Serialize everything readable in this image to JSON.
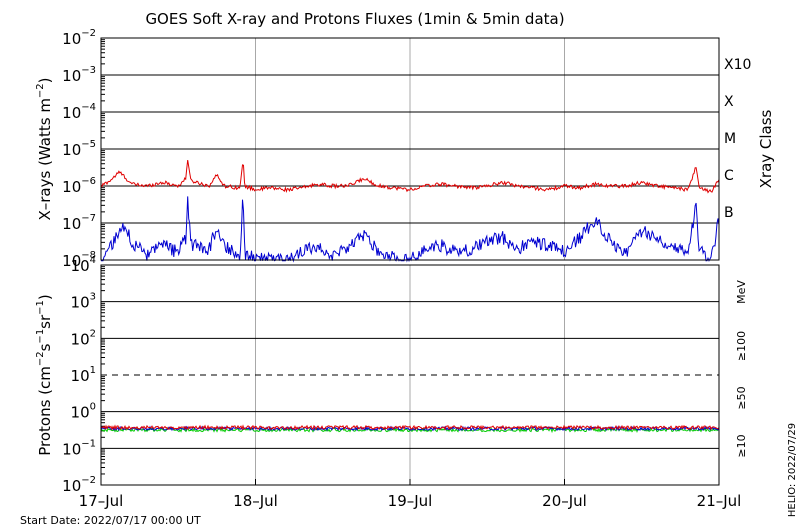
{
  "chart_data": {
    "type": "line",
    "title": "GOES Soft X-ray and Protons Fluxes   (1min & 5min data)",
    "x_axis": {
      "range": [
        "2022-07-17 00:00",
        "2022-07-21 00:00"
      ],
      "ticks": [
        {
          "label": "17–Jul",
          "day": 0
        },
        {
          "label": "18–Jul",
          "day": 1
        },
        {
          "label": "19–Jul",
          "day": 2
        },
        {
          "label": "20–Jul",
          "day": 3
        },
        {
          "label": "21–Jul",
          "day": 4
        }
      ]
    },
    "panels": [
      {
        "id": "xray",
        "ylabel": {
          "pre": "X–rays (Watts m",
          "sup": "−2",
          "post": ")"
        },
        "scale": "log",
        "ylim_exp": [
          -8,
          -2
        ],
        "ytick_labels": [
          {
            "base": "10",
            "exp": "−8",
            "e": -8
          },
          {
            "base": "10",
            "exp": "−7",
            "e": -7
          },
          {
            "base": "10",
            "exp": "−6",
            "e": -6
          },
          {
            "base": "10",
            "exp": "−5",
            "e": -5
          },
          {
            "base": "10",
            "exp": "−4",
            "e": -4
          },
          {
            "base": "10",
            "exp": "−3",
            "e": -3
          },
          {
            "base": "10",
            "exp": "−2",
            "e": -2
          }
        ],
        "class_axis_label": "Xray Class",
        "classes": [
          {
            "label": "B",
            "e": -7
          },
          {
            "label": "C",
            "e": -6
          },
          {
            "label": "M",
            "e": -5
          },
          {
            "label": "X",
            "e": -4
          },
          {
            "label": "X10",
            "e": -3
          }
        ],
        "series": [
          {
            "color": "#e00000",
            "days": [
              0,
              0.06,
              0.12,
              0.2,
              0.3,
              0.4,
              0.5,
              0.55,
              0.56,
              0.58,
              0.7,
              0.75,
              0.8,
              0.9,
              0.92,
              0.93,
              1.0,
              1.1,
              1.2,
              1.3,
              1.4,
              1.5,
              1.6,
              1.7,
              1.8,
              1.9,
              2.0,
              2.1,
              2.2,
              2.3,
              2.4,
              2.5,
              2.6,
              2.7,
              2.8,
              2.9,
              3.0,
              3.1,
              3.2,
              3.3,
              3.4,
              3.5,
              3.6,
              3.7,
              3.8,
              3.85,
              3.87,
              3.9,
              3.95,
              4.0
            ],
            "log10_flux": [
              -6.0,
              -5.85,
              -5.62,
              -5.95,
              -6.0,
              -5.9,
              -6.0,
              -5.8,
              -5.22,
              -5.85,
              -6.0,
              -5.7,
              -6.0,
              -6.05,
              -5.3,
              -6.0,
              -6.1,
              -6.05,
              -6.1,
              -6.05,
              -5.95,
              -6.0,
              -6.0,
              -5.8,
              -6.0,
              -6.05,
              -6.1,
              -6.0,
              -5.95,
              -6.0,
              -6.05,
              -6.0,
              -5.9,
              -6.0,
              -6.05,
              -6.1,
              -6.0,
              -6.05,
              -5.95,
              -6.0,
              -6.0,
              -5.9,
              -6.0,
              -6.05,
              -6.1,
              -5.5,
              -6.0,
              -6.1,
              -6.15,
              -5.85
            ]
          },
          {
            "color": "#0000d0",
            "days": [
              0,
              0.08,
              0.15,
              0.2,
              0.3,
              0.4,
              0.5,
              0.55,
              0.56,
              0.58,
              0.7,
              0.75,
              0.8,
              0.9,
              0.92,
              0.93,
              1.0,
              1.1,
              1.2,
              1.3,
              1.4,
              1.5,
              1.6,
              1.7,
              1.8,
              1.9,
              2.0,
              2.1,
              2.2,
              2.3,
              2.4,
              2.5,
              2.6,
              2.7,
              2.8,
              2.9,
              3.0,
              3.1,
              3.2,
              3.3,
              3.4,
              3.5,
              3.6,
              3.7,
              3.8,
              3.85,
              3.87,
              3.9,
              3.95,
              4.0
            ],
            "log10_flux": [
              -8.0,
              -7.55,
              -7.05,
              -7.5,
              -7.9,
              -7.6,
              -7.8,
              -7.4,
              -6.15,
              -7.6,
              -7.7,
              -7.1,
              -7.6,
              -7.9,
              -6.1,
              -7.8,
              -8.0,
              -7.9,
              -8.05,
              -7.8,
              -7.6,
              -7.9,
              -7.7,
              -7.3,
              -7.8,
              -7.95,
              -8.0,
              -7.7,
              -7.6,
              -7.8,
              -7.7,
              -7.5,
              -7.4,
              -7.7,
              -7.5,
              -7.6,
              -7.8,
              -7.4,
              -6.9,
              -7.5,
              -7.8,
              -7.2,
              -7.4,
              -7.6,
              -7.8,
              -6.5,
              -7.6,
              -7.9,
              -8.0,
              -6.9
            ]
          }
        ]
      },
      {
        "id": "protons",
        "ylabel": {
          "pre": "Protons (cm",
          "s1": "−2",
          "mid1": "s",
          "s2": "−1",
          "mid2": "sr",
          "s3": "−1",
          "post": ")"
        },
        "scale": "log",
        "ylim_exp": [
          -2,
          4
        ],
        "ytick_labels": [
          {
            "base": "10",
            "exp": "−2",
            "e": -2
          },
          {
            "base": "10",
            "exp": "−1",
            "e": -1
          },
          {
            "base": "10",
            "exp": "0",
            "e": 0
          },
          {
            "base": "10",
            "exp": "1",
            "e": 1
          },
          {
            "base": "10",
            "exp": "2",
            "e": 2
          },
          {
            "base": "10",
            "exp": "3",
            "e": 3
          },
          {
            "base": "10",
            "exp": "4",
            "e": 4
          }
        ],
        "threshold_e": 1,
        "unit_label": "MeV",
        "series": [
          {
            "name": "≥10",
            "color": "#e00000",
            "log10_flux_level": -0.43
          },
          {
            "name": "≥50",
            "color": "#0000d0",
            "log10_flux_level": -0.46
          },
          {
            "name": "≥100",
            "color": "#00cc00",
            "log10_flux_level": -0.5
          }
        ]
      }
    ]
  },
  "footer": {
    "start_date": "Start Date: 2022/07/17 00:00 UT",
    "helio": "HELIO: 2022/07/29"
  }
}
